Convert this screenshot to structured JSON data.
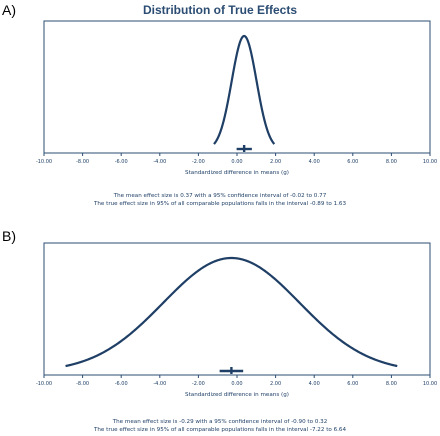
{
  "figure": {
    "title": "Distribution of True Effects"
  },
  "panels": [
    {
      "letter": "A)",
      "xlabel": "Standardized difference in means (g)",
      "summary_line1": "The mean effect size is 0.37 with a 95% confidence interval of -0.02 to 0.77",
      "summary_line2": "The true effect size in 95% of all comparable populations falls in the interval -0.89 to 1.63"
    },
    {
      "letter": "B)",
      "xlabel": "Standardized difference in means (g)",
      "summary_line1": "The mean effect size is -0.29 with a 95% confidence interval of -0.90 to 0.32",
      "summary_line2": "The true effect size in 95% of all comparable populations falls in the interval -7.22 to 6.64"
    }
  ],
  "colors": {
    "curve": "#1f3f66",
    "frame": "#2c4d73",
    "title": "#2c4d73"
  },
  "chart_data": [
    {
      "type": "line",
      "title": "Distribution of True Effects",
      "xlabel": "Standardized difference in means (g)",
      "ylabel": "",
      "xlim": [
        -10,
        10
      ],
      "xticks": [
        "-10.00",
        "-8.00",
        "-6.00",
        "-4.00",
        "-2.00",
        "0.00",
        "2.00",
        "4.00",
        "6.00",
        "8.00",
        "10.00"
      ],
      "grid": false,
      "distribution": {
        "mean": 0.37,
        "ci": [
          -0.02,
          0.77
        ],
        "prediction_interval": [
          -0.89,
          1.63
        ]
      }
    },
    {
      "type": "line",
      "title": "",
      "xlabel": "Standardized difference in means (g)",
      "ylabel": "",
      "xlim": [
        -10,
        10
      ],
      "xticks": [
        "-10.00",
        "-8.00",
        "-6.00",
        "-4.00",
        "-2.00",
        "0.00",
        "2.00",
        "4.00",
        "6.00",
        "8.00",
        "10.00"
      ],
      "grid": false,
      "distribution": {
        "mean": -0.29,
        "ci": [
          -0.9,
          0.32
        ],
        "prediction_interval": [
          -7.22,
          6.64
        ]
      }
    }
  ]
}
